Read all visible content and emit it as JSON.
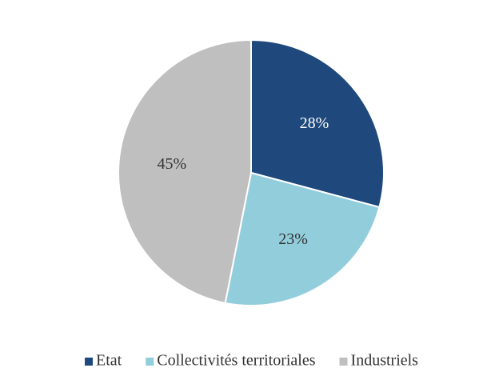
{
  "chart_data": {
    "type": "pie",
    "categories": [
      "Etat",
      "Collectivités territoriales",
      "Industriels"
    ],
    "values": [
      28,
      23,
      45
    ],
    "value_labels": [
      "28%",
      "23%",
      "45%"
    ],
    "colors": [
      "#1f497d",
      "#92cddc",
      "#bfbfbf"
    ],
    "legend": "bottom"
  }
}
